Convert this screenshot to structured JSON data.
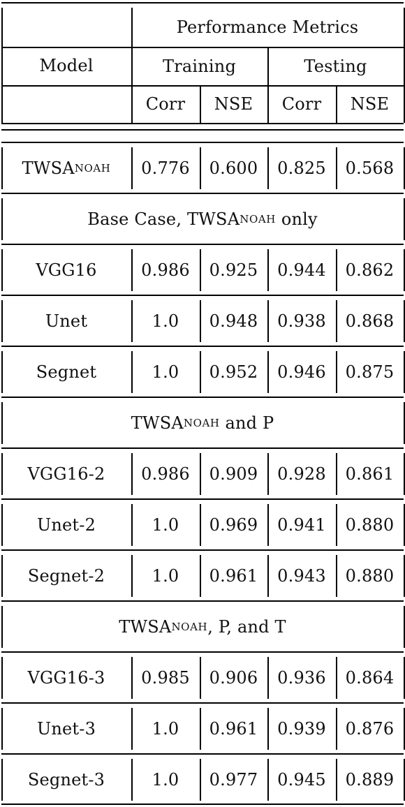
{
  "header": {
    "model": "Model",
    "performance": "Performance Metrics",
    "training": "Training",
    "testing": "Testing",
    "corr_train": "Corr",
    "nse_train": "NSE",
    "corr_test": "Corr",
    "nse_test": "NSE"
  },
  "baseline": {
    "model_main": "TWSA",
    "model_sub": "NOAH",
    "values": [
      "0.776",
      "0.600",
      "0.825",
      "0.568"
    ]
  },
  "sections": [
    {
      "title_pre": "Base Case, TWSA",
      "title_sub": "NOAH",
      "title_post": " only",
      "rows": [
        {
          "model": "VGG16",
          "values": [
            "0.986",
            "0.925",
            "0.944",
            "0.862"
          ]
        },
        {
          "model": "Unet",
          "values": [
            "1.0",
            "0.948",
            "0.938",
            "0.868"
          ]
        },
        {
          "model": "Segnet",
          "values": [
            "1.0",
            "0.952",
            "0.946",
            "0.875"
          ]
        }
      ]
    },
    {
      "title_pre": "TWSA",
      "title_sub": "NOAH",
      "title_post": " and P",
      "rows": [
        {
          "model": "VGG16-2",
          "values": [
            "0.986",
            "0.909",
            "0.928",
            "0.861"
          ]
        },
        {
          "model": "Unet-2",
          "values": [
            "1.0",
            "0.969",
            "0.941",
            "0.880"
          ]
        },
        {
          "model": "Segnet-2",
          "values": [
            "1.0",
            "0.961",
            "0.943",
            "0.880"
          ]
        }
      ]
    },
    {
      "title_pre": "TWSA",
      "title_sub": "NOAH",
      "title_post": ", P, and T",
      "rows": [
        {
          "model": "VGG16-3",
          "values": [
            "0.985",
            "0.906",
            "0.936",
            "0.864"
          ]
        },
        {
          "model": "Unet-3",
          "values": [
            "1.0",
            "0.961",
            "0.939",
            "0.876"
          ]
        },
        {
          "model": "Segnet-3",
          "values": [
            "1.0",
            "0.977",
            "0.945",
            "0.889"
          ]
        }
      ]
    }
  ]
}
